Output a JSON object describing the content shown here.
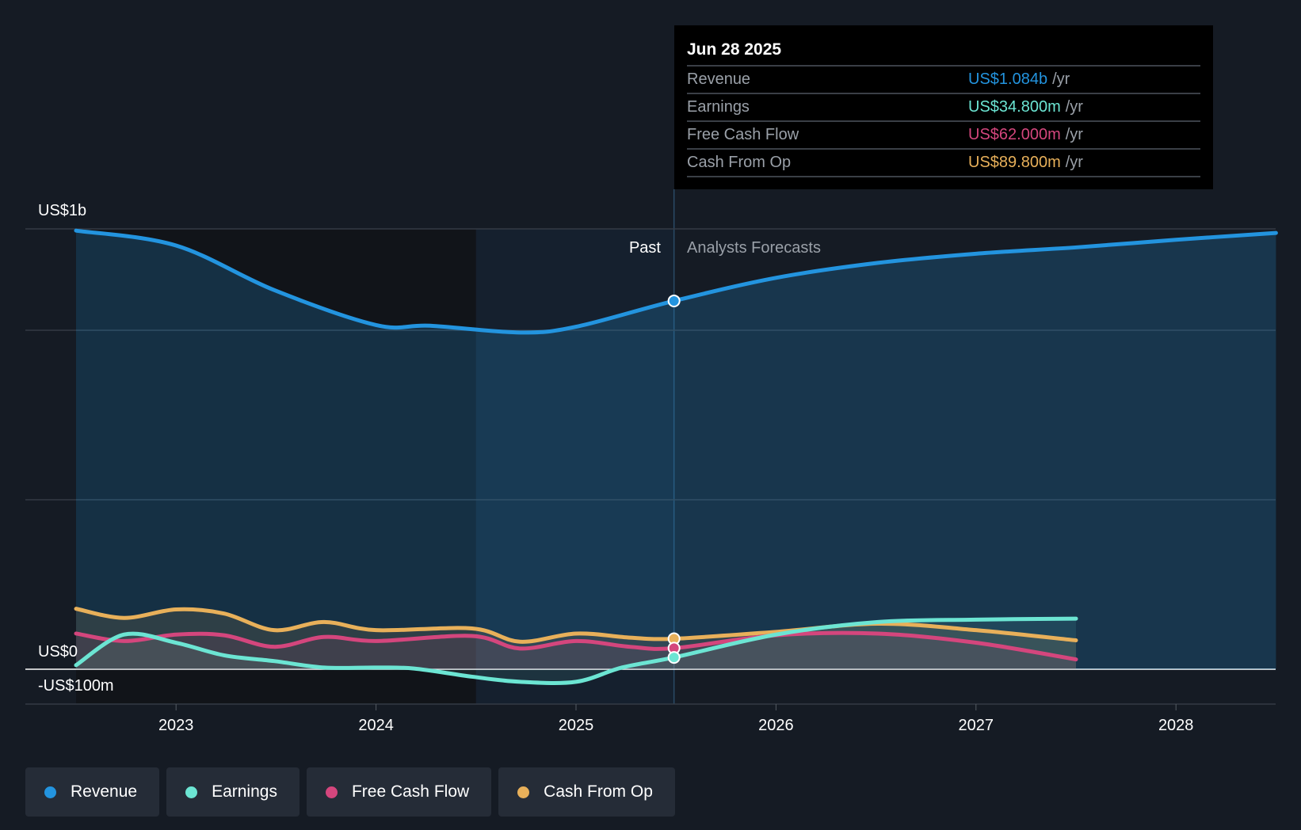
{
  "chart_data": {
    "type": "area",
    "title": "",
    "y_axis": {
      "top_label": "US$1b",
      "zero_label": "US$0",
      "bottom_label": "-US$100m",
      "unit": "US$ millions"
    },
    "x_ticks": [
      "2023",
      "2024",
      "2025",
      "2026",
      "2027",
      "2028"
    ],
    "x_tick_values": [
      2023,
      2024,
      2025,
      2026,
      2027,
      2028
    ],
    "past_label": "Past",
    "forecast_label": "Analysts Forecasts",
    "divider_date": 2025.49,
    "highlight_start": 2024.5,
    "series": [
      {
        "name": "Revenue",
        "color": "#2394df",
        "x": [
          2022.5,
          2023,
          2023.49,
          2024,
          2024.27,
          2024.72,
          2025,
          2025.49,
          2026,
          2026.51,
          2027,
          2027.51,
          2028,
          2028.5
        ],
        "values": [
          1291,
          1247,
          1116,
          1013,
          1011,
          991,
          1008,
          1084,
          1152,
          1196,
          1223,
          1242,
          1264,
          1284
        ]
      },
      {
        "name": "Earnings",
        "color": "#6ce5d3",
        "x": [
          2022.5,
          2022.74,
          2023,
          2023.24,
          2023.49,
          2023.74,
          2024,
          2024.19,
          2024.48,
          2024.72,
          2025,
          2025.23,
          2025.49,
          2026,
          2026.51,
          2027,
          2027.5
        ],
        "values": [
          12,
          102,
          78,
          41,
          24,
          5,
          5,
          2,
          -22,
          -37,
          -37,
          5,
          34.8,
          102,
          139,
          146,
          149
        ]
      },
      {
        "name": "Free Cash Flow",
        "color": "#d4467d",
        "x": [
          2022.5,
          2022.74,
          2023,
          2023.24,
          2023.49,
          2023.74,
          2024,
          2024.48,
          2024.72,
          2025,
          2025.27,
          2025.49,
          2026,
          2026.51,
          2027,
          2027.5
        ],
        "values": [
          105,
          83,
          102,
          100,
          66,
          95,
          83,
          98,
          61,
          83,
          66,
          62,
          100,
          105,
          78,
          29
        ]
      },
      {
        "name": "Cash From Op",
        "color": "#e8b05a",
        "x": [
          2022.5,
          2022.74,
          2023,
          2023.24,
          2023.49,
          2023.74,
          2024,
          2024.48,
          2024.72,
          2025,
          2025.27,
          2025.49,
          2026,
          2026.51,
          2027,
          2027.5
        ],
        "values": [
          178,
          151,
          176,
          164,
          115,
          139,
          115,
          120,
          81,
          105,
          93,
          89.8,
          110,
          134,
          115,
          85
        ]
      }
    ]
  },
  "tooltip": {
    "date": "Jun 28 2025",
    "unit": "/yr",
    "rows": [
      {
        "label": "Revenue",
        "value": "US$1.084b",
        "color": "#2394df"
      },
      {
        "label": "Earnings",
        "value": "US$34.800m",
        "color": "#6ce5d3"
      },
      {
        "label": "Free Cash Flow",
        "value": "US$62.000m",
        "color": "#d4467d"
      },
      {
        "label": "Cash From Op",
        "value": "US$89.800m",
        "color": "#e8b05a"
      }
    ]
  },
  "legend": [
    {
      "label": "Revenue",
      "color": "#2394df"
    },
    {
      "label": "Earnings",
      "color": "#6ce5d3"
    },
    {
      "label": "Free Cash Flow",
      "color": "#d4467d"
    },
    {
      "label": "Cash From Op",
      "color": "#e8b05a"
    }
  ]
}
